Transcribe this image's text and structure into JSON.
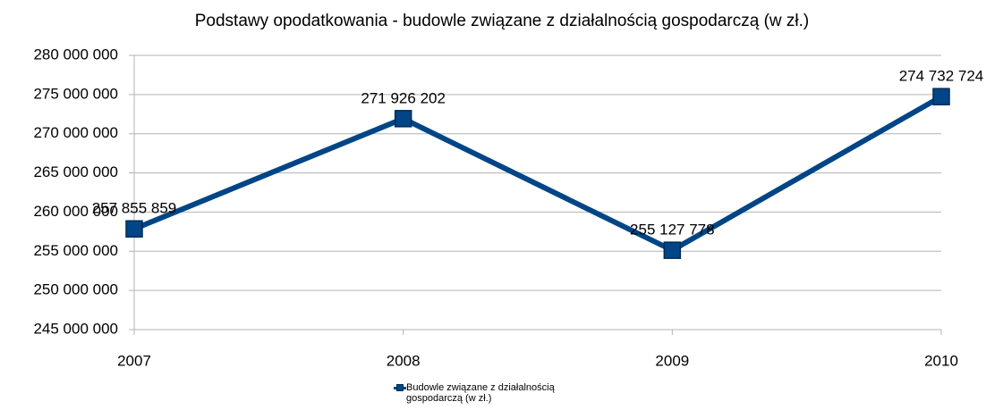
{
  "chart_data": {
    "type": "line",
    "title": "Podstawy opodatkowania - budowle związane z działalnością gospodarczą (w zł.)",
    "categories": [
      "2007",
      "2008",
      "2009",
      "2010"
    ],
    "series": [
      {
        "name": "Budowle związane z działalnością gospodarczą (w zł.)",
        "color": "#004586",
        "values": [
          257855859,
          271926202,
          255127778,
          274732724
        ],
        "value_labels": [
          "257 855 859",
          "271 926 202",
          "255 127 778",
          "274 732 724"
        ]
      }
    ],
    "ylim": [
      245000000,
      280000000
    ],
    "yticks": [
      {
        "value": 245000000,
        "label": "245 000 000"
      },
      {
        "value": 250000000,
        "label": "250 000 000"
      },
      {
        "value": 255000000,
        "label": "255 000 000"
      },
      {
        "value": 260000000,
        "label": "260 000 000"
      },
      {
        "value": 265000000,
        "label": "265 000 000"
      },
      {
        "value": 270000000,
        "label": "270 000 000"
      },
      {
        "value": 275000000,
        "label": "275 000 000"
      },
      {
        "value": 280000000,
        "label": "280 000 000"
      }
    ],
    "grid": true,
    "legend": "bottom"
  }
}
